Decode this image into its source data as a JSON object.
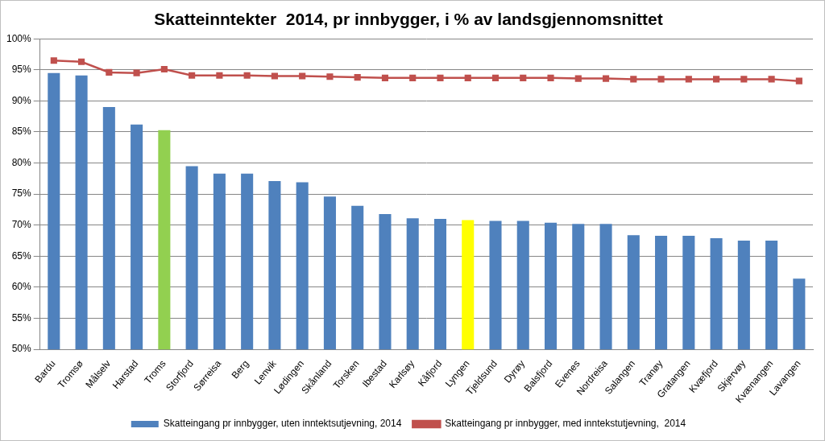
{
  "chart_data": {
    "type": "bar",
    "title": "Skatteinntekter  2014, pr innbygger, i % av landsgjennomsnittet",
    "categories": [
      "Bardu",
      "Tromsø",
      "Målselv",
      "Harstad",
      "Troms",
      "Storfjord",
      "Sørreisa",
      "Berg",
      "Lenvik",
      "Lødingen",
      "Skånland",
      "Torsken",
      "Ibestad",
      "Karlsøy",
      "Kåfjord",
      "Lyngen",
      "Tjeldsund",
      "Dyrøy",
      "Balsfjord",
      "Evenes",
      "Nordreisa",
      "Salangen",
      "Tranøy",
      "Gratangen",
      "Kvæfjord",
      "Skjervøy",
      "Kvænangen",
      "Lavangen"
    ],
    "series": [
      {
        "name": "Skatteingang pr innbygger, uten inntektsutjevning, 2014",
        "type": "bar",
        "colors": [
          "#4f81bd",
          "#4f81bd",
          "#4f81bd",
          "#4f81bd",
          "#92d050",
          "#4f81bd",
          "#4f81bd",
          "#4f81bd",
          "#4f81bd",
          "#4f81bd",
          "#4f81bd",
          "#4f81bd",
          "#4f81bd",
          "#4f81bd",
          "#4f81bd",
          "#ffff00",
          "#4f81bd",
          "#4f81bd",
          "#4f81bd",
          "#4f81bd",
          "#4f81bd",
          "#4f81bd",
          "#4f81bd",
          "#4f81bd",
          "#4f81bd",
          "#4f81bd",
          "#4f81bd",
          "#4f81bd"
        ],
        "values": [
          94.5,
          94.1,
          89.0,
          86.2,
          85.3,
          79.5,
          78.3,
          78.3,
          77.1,
          76.9,
          74.6,
          73.1,
          71.8,
          71.1,
          71.0,
          70.8,
          70.7,
          70.7,
          70.4,
          70.2,
          70.2,
          68.4,
          68.3,
          68.3,
          67.9,
          67.5,
          67.5,
          61.4
        ]
      },
      {
        "name": "Skatteingang pr innbygger, med inntekstutjevning,  2014",
        "type": "line",
        "color": "#c0504d",
        "marker": "square",
        "values": [
          96.5,
          96.3,
          94.6,
          94.5,
          95.1,
          94.1,
          94.1,
          94.1,
          94.0,
          94.0,
          93.9,
          93.8,
          93.7,
          93.7,
          93.7,
          93.7,
          93.7,
          93.7,
          93.7,
          93.6,
          93.6,
          93.5,
          93.5,
          93.5,
          93.5,
          93.5,
          93.5,
          93.2
        ]
      }
    ],
    "ylim": [
      50,
      100
    ],
    "yticks": [
      {
        "value": 50,
        "label": "50%"
      },
      {
        "value": 55,
        "label": "55%"
      },
      {
        "value": 60,
        "label": "60%"
      },
      {
        "value": 65,
        "label": "65%"
      },
      {
        "value": 70,
        "label": "70%"
      },
      {
        "value": 75,
        "label": "75%"
      },
      {
        "value": 80,
        "label": "80%"
      },
      {
        "value": 85,
        "label": "85%"
      },
      {
        "value": 90,
        "label": "90%"
      },
      {
        "value": 95,
        "label": "95%"
      },
      {
        "value": 100,
        "label": "100%"
      }
    ],
    "grid": true,
    "legend": "bottom"
  }
}
